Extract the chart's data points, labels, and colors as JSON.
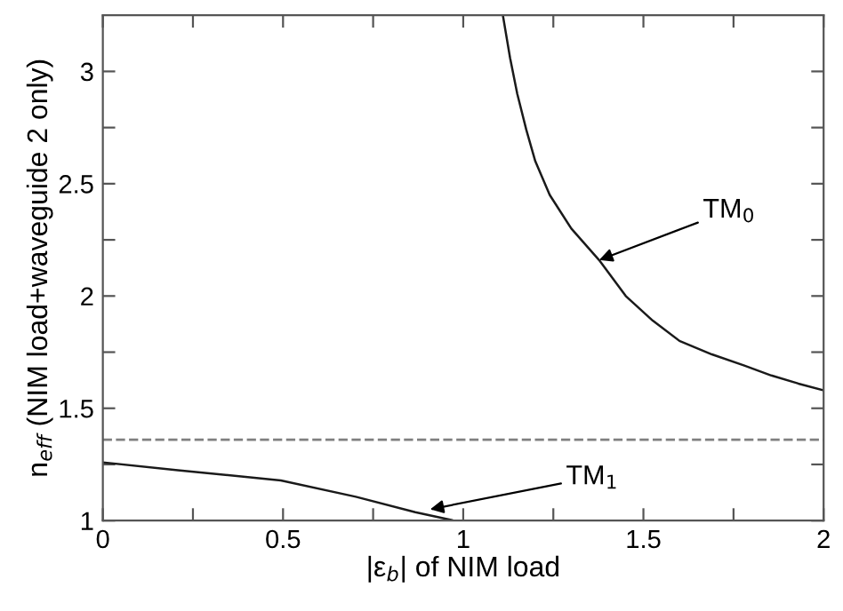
{
  "chart_data": {
    "type": "line",
    "xlabel": "|ε$_{b}$| of NIM load",
    "ylabel": "n$_{eff}$ (NIM load+waveguide 2 only)",
    "series": [
      {
        "x": [
          1.11,
          1.13,
          1.15,
          1.175,
          1.2,
          1.24,
          1.3,
          1.377,
          1.451,
          1.526,
          1.6,
          1.69,
          1.78,
          1.855,
          1.93,
          2.0
        ],
        "values": [
          3.25,
          3.06,
          2.9,
          2.74,
          2.6,
          2.45,
          2.3,
          2.16,
          2.0,
          1.89,
          1.8,
          1.74,
          1.69,
          1.646,
          1.61,
          1.58
        ],
        "color": "#1a1a1a"
      },
      {
        "x": [
          0,
          0.208,
          0.494,
          0.702,
          0.867,
          0.974
        ],
        "values": [
          1.259,
          1.224,
          1.179,
          1.106,
          1.037,
          1.0
        ],
        "color": "#1a1a1a"
      }
    ],
    "annotations": [
      {
        "text": "TM$_{0}$",
        "x": 1.377,
        "y": 2.16
      },
      {
        "text": "TM$_{1}$",
        "x": 0.908,
        "y": 1.05
      }
    ],
    "ref_lines": [
      {
        "axis": "y",
        "value": 1.36,
        "label": null,
        "color": "#808080",
        "line_style": "dashed"
      }
    ],
    "xlim": [
      0,
      2
    ],
    "ylim": [
      1,
      3.25
    ],
    "xticks": [
      0,
      {
        "value": 0.25,
        "label": null
      },
      0.5,
      {
        "value": 0.75,
        "label": null
      },
      1,
      {
        "value": 1.25,
        "label": null
      },
      1.5,
      {
        "value": 1.75,
        "label": null
      },
      2
    ],
    "yticks": [
      1,
      {
        "value": 1.25,
        "label": null
      },
      1.5,
      {
        "value": 1.75,
        "label": null
      },
      2,
      {
        "value": 2.25,
        "label": null
      },
      2.5,
      {
        "value": 2.75,
        "label": null
      },
      3
    ],
    "grid": false,
    "legend": false,
    "marker": "none",
    "line_style": "solid"
  }
}
